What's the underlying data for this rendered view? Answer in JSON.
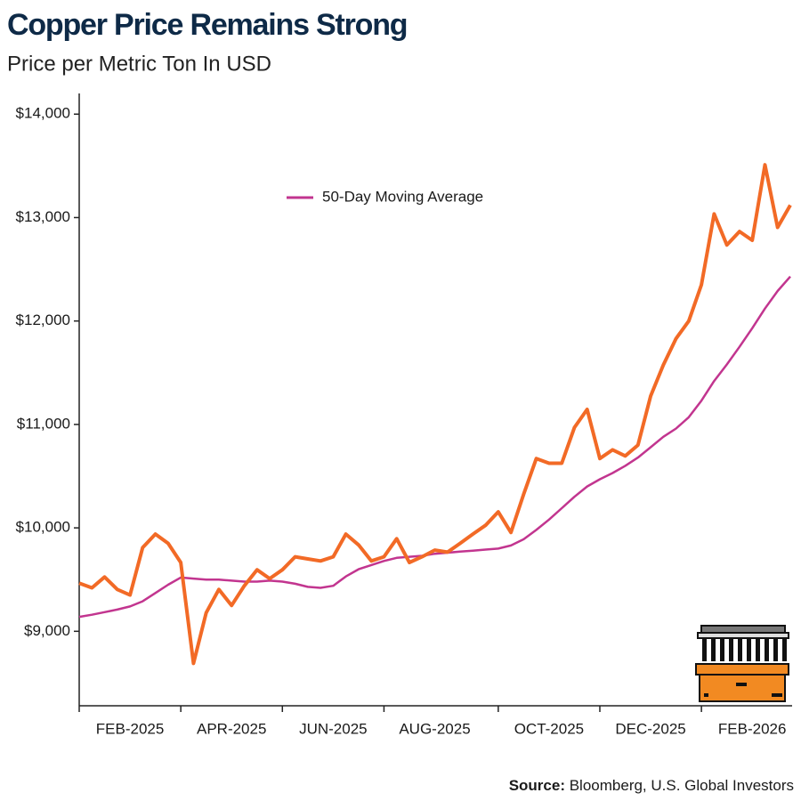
{
  "chart_data": {
    "type": "line",
    "title": "Copper Price Remains Strong",
    "subtitle": "Price per Metric Ton In USD",
    "source_label": "Source:",
    "source": "Bloomberg, U.S. Global Investors",
    "categories": [
      null,
      null,
      null,
      null,
      "FEB-2025",
      null,
      null,
      null,
      null,
      null,
      null,
      null,
      "APR-2025",
      null,
      null,
      null,
      null,
      null,
      null,
      null,
      "JUN-2025",
      null,
      null,
      null,
      null,
      null,
      null,
      null,
      "AUG-2025",
      null,
      null,
      null,
      null,
      null,
      null,
      null,
      null,
      "OCT-2025",
      null,
      null,
      null,
      null,
      null,
      null,
      null,
      "DEC-2025",
      null,
      null,
      null,
      null,
      null,
      null,
      null,
      "FEB-2026",
      null,
      null,
      null
    ],
    "series": [
      {
        "color": "#f26a26",
        "values": [
          9465,
          9420,
          9525,
          9405,
          9350,
          9810,
          9940,
          9850,
          9665,
          8690,
          9180,
          9405,
          9250,
          9440,
          9595,
          9510,
          9595,
          9720,
          9700,
          9680,
          9720,
          9940,
          9835,
          9680,
          9720,
          9895,
          9665,
          9720,
          9785,
          9765,
          9850,
          9940,
          10025,
          10155,
          9955,
          10325,
          10670,
          10625,
          10625,
          10970,
          11145,
          10670,
          10755,
          10695,
          10800,
          11275,
          11575,
          11830,
          12000,
          12350,
          13035,
          12735,
          12865,
          12780,
          13510,
          12905,
          13120
        ]
      },
      {
        "name": "50-Day Moving Average",
        "color": "#c2358f",
        "values": [
          9140,
          9160,
          9185,
          9210,
          9240,
          9290,
          9370,
          9450,
          9520,
          9510,
          9500,
          9500,
          9490,
          9480,
          9480,
          9490,
          9480,
          9460,
          9430,
          9420,
          9440,
          9530,
          9600,
          9640,
          9680,
          9710,
          9720,
          9730,
          9750,
          9760,
          9770,
          9780,
          9790,
          9800,
          9830,
          9890,
          9980,
          10080,
          10190,
          10300,
          10400,
          10470,
          10530,
          10600,
          10680,
          10780,
          10880,
          10960,
          11070,
          11230,
          11420,
          11580,
          11750,
          11930,
          12120,
          12290,
          12430
        ]
      }
    ],
    "ylim": [
      8280,
      14200
    ],
    "yticks": [
      {
        "value": 9000,
        "label": "$9,000"
      },
      {
        "value": 10000,
        "label": "$10,000"
      },
      {
        "value": 11000,
        "label": "$11,000"
      },
      {
        "value": 12000,
        "label": "$12,000"
      },
      {
        "value": 13000,
        "label": "$13,000"
      },
      {
        "value": 14000,
        "label": "$14,000"
      }
    ],
    "grid": false,
    "legend": "top"
  }
}
